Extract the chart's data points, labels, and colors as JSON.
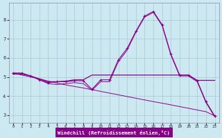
{
  "bg_color": "#cce8f0",
  "grid_color": "#aabbcc",
  "line_color": "#880088",
  "x_values": [
    0,
    1,
    2,
    3,
    4,
    5,
    6,
    7,
    8,
    9,
    10,
    11,
    12,
    13,
    14,
    15,
    16,
    17,
    18,
    19,
    20,
    21,
    22,
    23
  ],
  "line1_y": [
    5.2,
    5.2,
    5.05,
    4.85,
    4.7,
    4.75,
    4.75,
    4.8,
    4.8,
    4.35,
    4.85,
    4.85,
    5.9,
    6.5,
    7.4,
    8.2,
    8.45,
    7.75,
    6.2,
    5.1,
    5.1,
    4.8,
    3.7,
    2.95
  ],
  "line2_y": [
    5.2,
    5.2,
    5.05,
    4.85,
    4.65,
    4.6,
    4.65,
    4.7,
    4.65,
    4.3,
    4.75,
    4.75,
    5.8,
    6.4,
    7.35,
    8.15,
    8.4,
    7.7,
    6.15,
    5.05,
    5.05,
    4.75,
    3.65,
    2.9
  ],
  "line3_y": [
    5.15,
    5.15,
    5.05,
    4.9,
    4.75,
    4.75,
    4.78,
    4.85,
    4.85,
    5.1,
    5.1,
    5.1,
    5.1,
    5.1,
    5.1,
    5.1,
    5.1,
    5.1,
    5.1,
    5.1,
    5.1,
    4.82,
    4.82,
    4.82
  ],
  "line4_y": [
    5.2,
    5.1,
    5.0,
    4.9,
    4.78,
    4.68,
    4.58,
    4.5,
    4.42,
    4.33,
    4.24,
    4.15,
    4.06,
    3.97,
    3.88,
    3.79,
    3.7,
    3.62,
    3.53,
    3.44,
    3.35,
    3.26,
    3.17,
    2.95
  ],
  "xlabel": "Windchill (Refroidissement éolien,°C)",
  "xlim": [
    -0.5,
    23.5
  ],
  "ylim": [
    2.6,
    8.9
  ],
  "yticks": [
    3,
    4,
    5,
    6,
    7,
    8
  ],
  "xticks": [
    0,
    1,
    2,
    3,
    4,
    5,
    6,
    7,
    8,
    9,
    10,
    11,
    12,
    13,
    14,
    15,
    16,
    17,
    18,
    19,
    20,
    21,
    22,
    23
  ]
}
